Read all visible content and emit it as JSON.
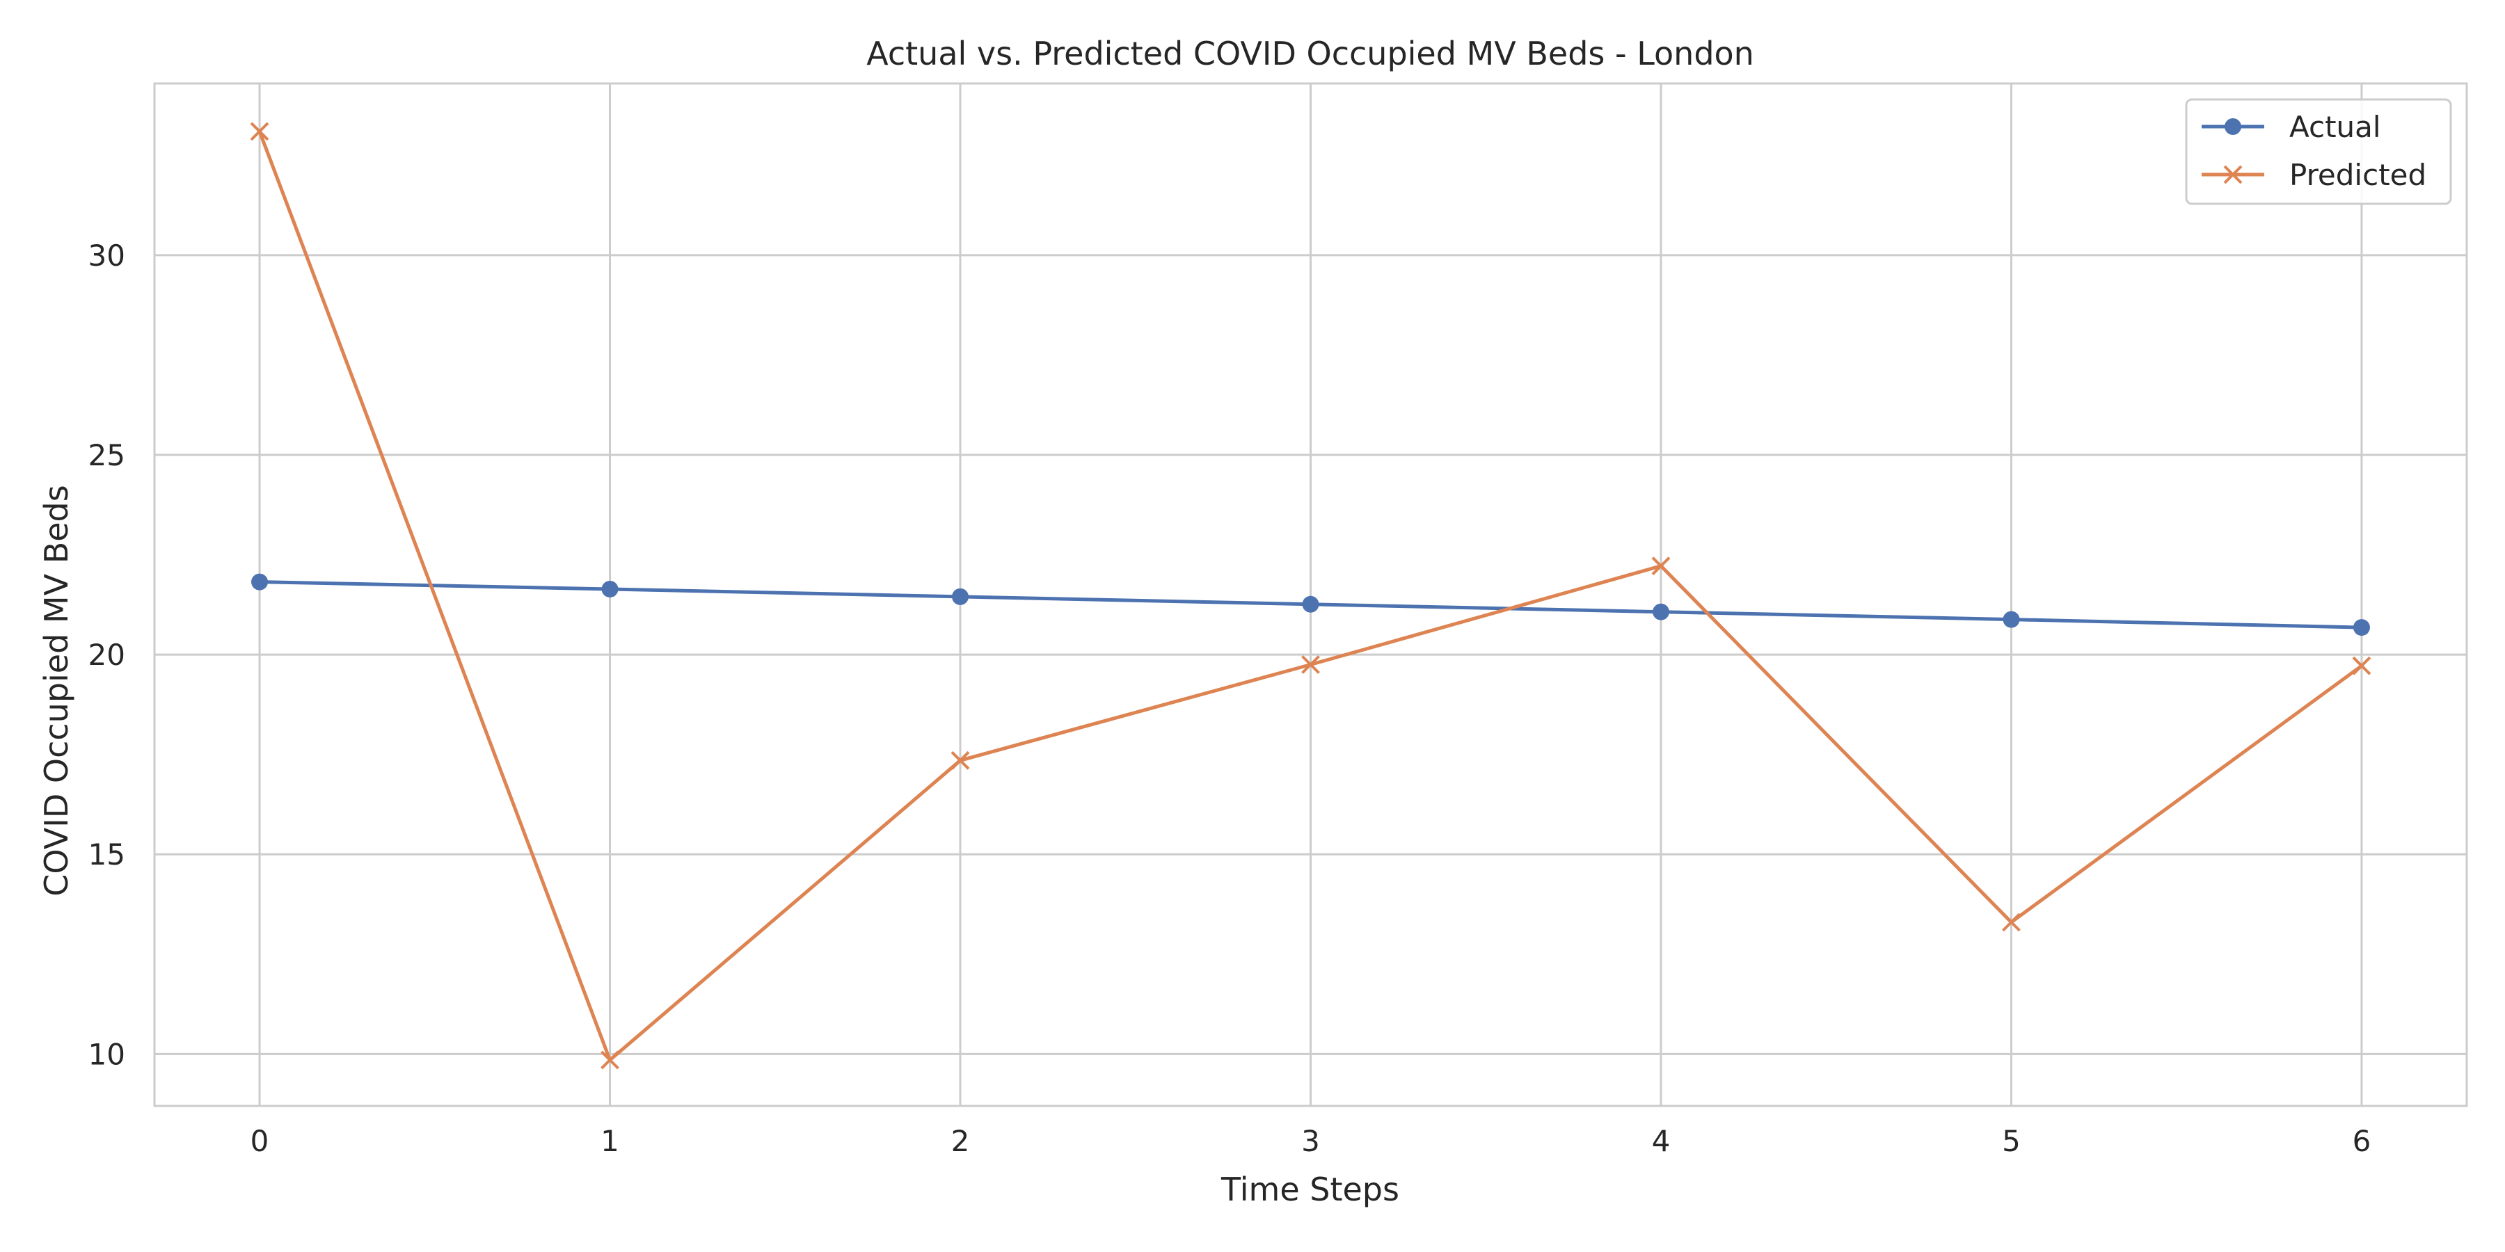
{
  "chart_data": {
    "type": "line",
    "title": "Actual vs. Predicted COVID Occupied MV Beds - London",
    "xlabel": "Time Steps",
    "ylabel": "COVID Occupied MV Beds",
    "x": [
      0,
      1,
      2,
      3,
      4,
      5,
      6
    ],
    "xticks": [
      "0",
      "1",
      "2",
      "3",
      "4",
      "5",
      "6"
    ],
    "yticks": [
      "10",
      "15",
      "20",
      "25",
      "30"
    ],
    "xlim": [
      -0.3,
      6.3
    ],
    "ylim": [
      8.7,
      34.3
    ],
    "grid": true,
    "legend_position": "top-right",
    "series": [
      {
        "name": "Actual",
        "color": "#4c72b0",
        "marker": "circle",
        "values": [
          21.82,
          21.64,
          21.45,
          21.26,
          21.07,
          20.88,
          20.68
        ]
      },
      {
        "name": "Predicted",
        "color": "#dd8452",
        "marker": "x",
        "values": [
          33.1,
          9.85,
          17.35,
          19.75,
          22.22,
          13.3,
          19.72
        ]
      }
    ]
  }
}
